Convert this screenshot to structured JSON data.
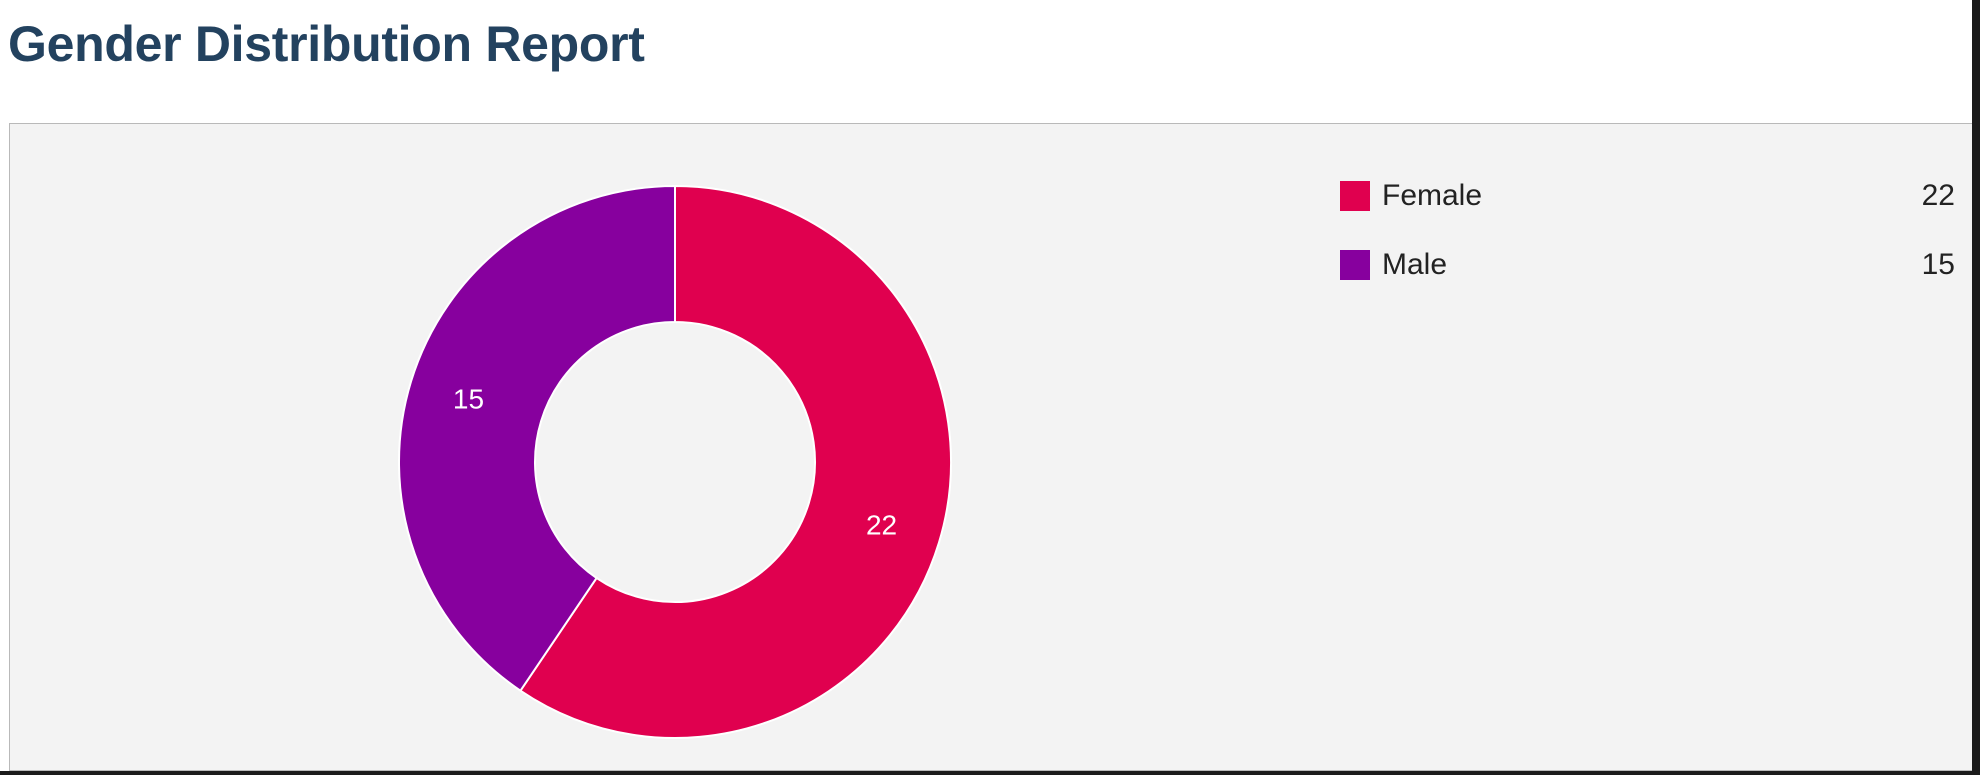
{
  "page": {
    "title": "Gender Distribution Report"
  },
  "chart_data": {
    "type": "pie",
    "variant": "donut",
    "title": "",
    "categories": [
      "Female",
      "Male"
    ],
    "values": [
      22,
      15
    ],
    "colors": [
      "#e0004f",
      "#87009e"
    ],
    "legend": {
      "position": "right",
      "items": [
        {
          "label": "Female",
          "value": "22",
          "color": "#e0004f"
        },
        {
          "label": "Male",
          "value": "15",
          "color": "#87009e"
        }
      ]
    },
    "slice_labels": [
      "22",
      "15"
    ]
  }
}
